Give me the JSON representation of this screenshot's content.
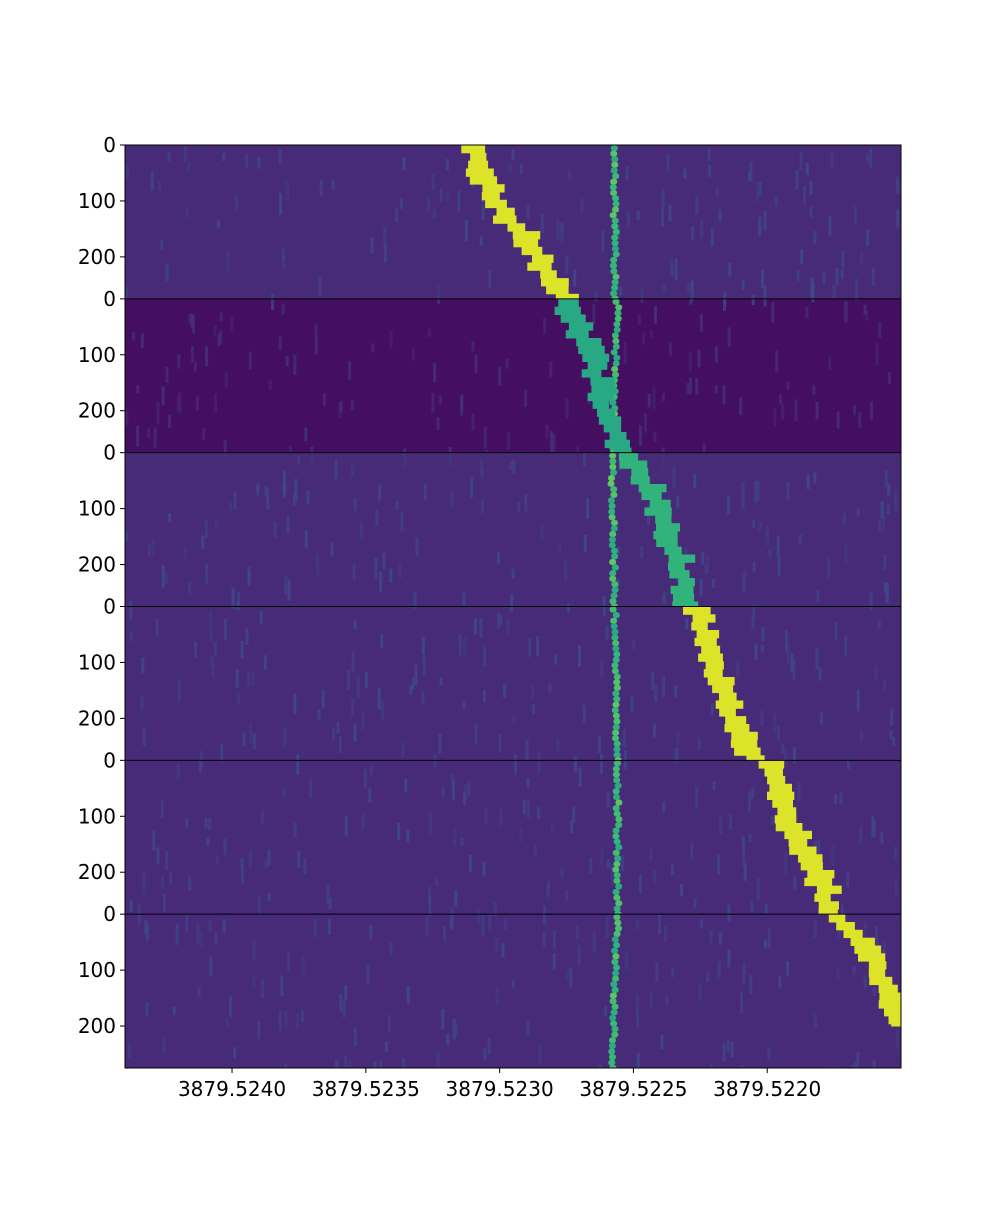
{
  "chart_data": {
    "type": "heatmap",
    "title": "",
    "xlabel": "",
    "ylabel": "",
    "colormap": "viridis",
    "panel_count": 6,
    "xlim": [
      3879.5244,
      3879.5215
    ],
    "x_ticks": [
      {
        "value": 3879.524,
        "label": "3879.5240"
      },
      {
        "value": 3879.5235,
        "label": "3879.5235"
      },
      {
        "value": 3879.523,
        "label": "3879.5230"
      },
      {
        "value": 3879.5225,
        "label": "3879.5225"
      },
      {
        "value": 3879.522,
        "label": "3879.5220"
      }
    ],
    "y_ticks_per_panel": [
      {
        "value": 0,
        "label": "0"
      },
      {
        "value": 100,
        "label": "100"
      },
      {
        "value": 200,
        "label": "200"
      }
    ],
    "panel_ylim": [
      0,
      275
    ],
    "panel_background_level": [
      0.12,
      0.04,
      0.12,
      0.12,
      0.12,
      0.12
    ],
    "series": [
      {
        "kind": "stationary_line",
        "intensity": 0.75,
        "points": [
          {
            "panel": 0,
            "t": 0,
            "x": 3879.52257
          },
          {
            "panel": 0,
            "t": 275,
            "x": 3879.52257
          },
          {
            "panel": 1,
            "t": 0,
            "x": 3879.52256
          },
          {
            "panel": 1,
            "t": 275,
            "x": 3879.52258
          },
          {
            "panel": 2,
            "t": 0,
            "x": 3879.52258
          },
          {
            "panel": 2,
            "t": 275,
            "x": 3879.52257
          },
          {
            "panel": 3,
            "t": 0,
            "x": 3879.52257
          },
          {
            "panel": 3,
            "t": 275,
            "x": 3879.52256
          },
          {
            "panel": 4,
            "t": 0,
            "x": 3879.52256
          },
          {
            "panel": 4,
            "t": 275,
            "x": 3879.52256
          },
          {
            "panel": 5,
            "t": 0,
            "x": 3879.52256
          },
          {
            "panel": 5,
            "t": 275,
            "x": 3879.52258
          }
        ]
      },
      {
        "kind": "drifting_line",
        "points": [
          {
            "panel": 0,
            "t": 0,
            "x": 3879.5231,
            "intensity": 0.95
          },
          {
            "panel": 0,
            "t": 100,
            "x": 3879.523,
            "intensity": 0.95
          },
          {
            "panel": 0,
            "t": 200,
            "x": 3879.52285,
            "intensity": 0.95
          },
          {
            "panel": 0,
            "t": 275,
            "x": 3879.52275,
            "intensity": 0.95
          },
          {
            "panel": 1,
            "t": 0,
            "x": 3879.52275,
            "intensity": 0.6
          },
          {
            "panel": 1,
            "t": 100,
            "x": 3879.52265,
            "intensity": 0.6
          },
          {
            "panel": 1,
            "t": 200,
            "x": 3879.5226,
            "intensity": 0.6
          },
          {
            "panel": 1,
            "t": 275,
            "x": 3879.52255,
            "intensity": 0.6
          },
          {
            "panel": 2,
            "t": 0,
            "x": 3879.5225,
            "intensity": 0.65
          },
          {
            "panel": 2,
            "t": 100,
            "x": 3879.5224,
            "intensity": 0.65
          },
          {
            "panel": 2,
            "t": 200,
            "x": 3879.52232,
            "intensity": 0.65
          },
          {
            "panel": 2,
            "t": 275,
            "x": 3879.5223,
            "intensity": 0.65
          },
          {
            "panel": 3,
            "t": 0,
            "x": 3879.52225,
            "intensity": 0.95
          },
          {
            "panel": 3,
            "t": 100,
            "x": 3879.5222,
            "intensity": 0.95
          },
          {
            "panel": 3,
            "t": 200,
            "x": 3879.52212,
            "intensity": 0.95
          },
          {
            "panel": 3,
            "t": 275,
            "x": 3879.52205,
            "intensity": 0.95
          },
          {
            "panel": 4,
            "t": 0,
            "x": 3879.522,
            "intensity": 0.95
          },
          {
            "panel": 4,
            "t": 100,
            "x": 3879.52192,
            "intensity": 0.95
          },
          {
            "panel": 4,
            "t": 200,
            "x": 3879.5218,
            "intensity": 0.95
          },
          {
            "panel": 4,
            "t": 275,
            "x": 3879.52175,
            "intensity": 0.95
          },
          {
            "panel": 5,
            "t": 0,
            "x": 3879.52172,
            "intensity": 0.95
          },
          {
            "panel": 5,
            "t": 100,
            "x": 3879.52158,
            "intensity": 0.95
          },
          {
            "panel": 5,
            "t": 200,
            "x": 3879.5215,
            "intensity": 0.95
          }
        ]
      }
    ]
  }
}
